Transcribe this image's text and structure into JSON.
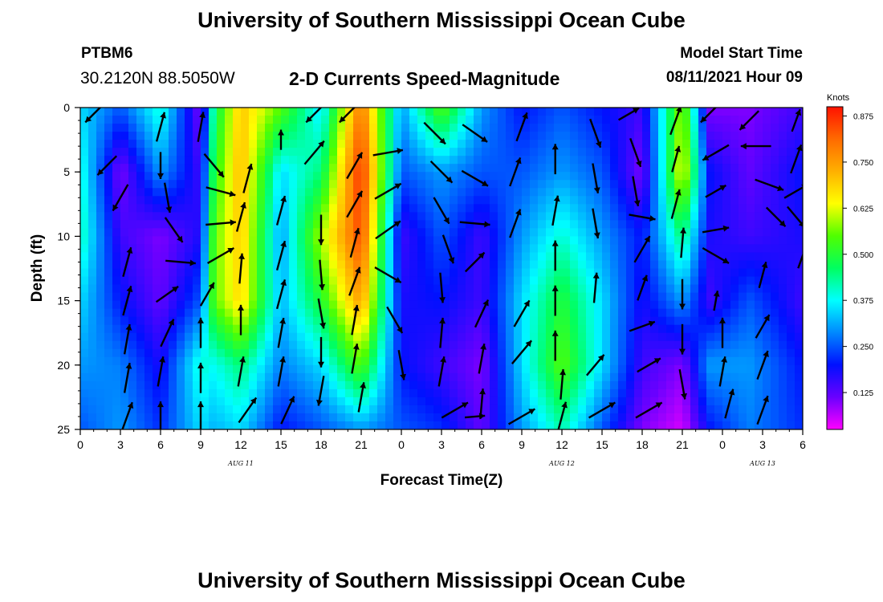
{
  "header": {
    "title": "University of Southern Mississippi Ocean Cube",
    "station_id": "PTBM6",
    "coordinates": "30.2120N  88.5050W",
    "chart_title": "2-D Currents Speed-Magnitude",
    "model_start_label": "Model Start Time",
    "model_start_value": "08/11/2021 Hour 09"
  },
  "footer": {
    "title": "University of Southern Mississippi Ocean Cube"
  },
  "chart_data": {
    "type": "heatmap",
    "title": "2-D Currents Speed-Magnitude",
    "xlabel": "Forecast Time(Z)",
    "ylabel": "Depth (ft)",
    "x_hours": [
      0,
      54
    ],
    "y_range": [
      0,
      25
    ],
    "y_inverted": true,
    "x_tick_labels": [
      "0",
      "3",
      "6",
      "9",
      "12",
      "15",
      "18",
      "21",
      "0",
      "3",
      "6",
      "9",
      "12",
      "15",
      "18",
      "21",
      "0",
      "3",
      "6"
    ],
    "y_tick_labels": [
      "0",
      "5",
      "10",
      "15",
      "20",
      "25"
    ],
    "day_labels": [
      {
        "text": "AUG  11",
        "hour": 12
      },
      {
        "text": "AUG  12",
        "hour": 36
      },
      {
        "text": "AUG  13",
        "hour": 51
      }
    ],
    "colorbar": {
      "unit": "Knots",
      "range": [
        0.025,
        0.9
      ],
      "tick_labels": [
        "0.875",
        "0.750",
        "0.625",
        "0.500",
        "0.375",
        "0.250",
        "0.125"
      ],
      "tick_values": [
        0.875,
        0.75,
        0.625,
        0.5,
        0.375,
        0.25,
        0.125
      ],
      "colors": [
        "#ff00ff",
        "#6a00ff",
        "#0010ff",
        "#0088ff",
        "#00ffff",
        "#00ff60",
        "#50ff00",
        "#ffff00",
        "#ffb000",
        "#ff6a00",
        "#ff1200"
      ]
    },
    "columns_hours": [
      0,
      3,
      6,
      9,
      10,
      12,
      15,
      18,
      21,
      24,
      27,
      30,
      33,
      36,
      39,
      42,
      45,
      47,
      50,
      54
    ],
    "depths_ft": [
      0,
      5,
      10,
      15,
      20,
      25
    ],
    "speed_knots": [
      [
        0.35,
        0.4,
        0.42,
        0.35,
        0.3,
        0.25
      ],
      [
        0.25,
        0.1,
        0.15,
        0.2,
        0.28,
        0.3
      ],
      [
        0.4,
        0.3,
        0.1,
        0.12,
        0.18,
        0.22
      ],
      [
        0.1,
        0.15,
        0.18,
        0.25,
        0.4,
        0.35
      ],
      [
        0.45,
        0.5,
        0.55,
        0.55,
        0.38,
        0.32
      ],
      [
        0.7,
        0.72,
        0.7,
        0.68,
        0.45,
        0.35
      ],
      [
        0.55,
        0.35,
        0.3,
        0.32,
        0.28,
        0.2
      ],
      [
        0.35,
        0.45,
        0.6,
        0.5,
        0.35,
        0.25
      ],
      [
        0.8,
        0.88,
        0.85,
        0.75,
        0.55,
        0.3
      ],
      [
        0.3,
        0.25,
        0.15,
        0.18,
        0.2,
        0.25
      ],
      [
        0.55,
        0.3,
        0.25,
        0.2,
        0.15,
        0.22
      ],
      [
        0.3,
        0.25,
        0.15,
        0.15,
        0.1,
        0.12
      ],
      [
        0.2,
        0.25,
        0.3,
        0.35,
        0.35,
        0.3
      ],
      [
        0.25,
        0.3,
        0.4,
        0.5,
        0.55,
        0.42
      ],
      [
        0.2,
        0.25,
        0.3,
        0.35,
        0.35,
        0.25
      ],
      [
        0.15,
        0.1,
        0.2,
        0.18,
        0.15,
        0.1
      ],
      [
        0.6,
        0.65,
        0.45,
        0.3,
        0.1,
        0.05
      ],
      [
        0.1,
        0.2,
        0.18,
        0.15,
        0.3,
        0.2
      ],
      [
        0.1,
        0.12,
        0.15,
        0.25,
        0.3,
        0.28
      ],
      [
        0.15,
        0.2,
        0.18,
        0.15,
        0.2,
        0.22
      ]
    ],
    "current_vectors": [
      {
        "hour": 1,
        "depth": 0.5,
        "angle": 225,
        "len": 0.7
      },
      {
        "hour": 2,
        "depth": 4.5,
        "angle": 225,
        "len": 0.8
      },
      {
        "hour": 3,
        "depth": 7,
        "angle": 210,
        "len": 0.9
      },
      {
        "hour": 3.5,
        "depth": 12,
        "angle": 15,
        "len": 0.9
      },
      {
        "hour": 3.5,
        "depth": 15,
        "angle": 15,
        "len": 0.9
      },
      {
        "hour": 3.5,
        "depth": 18,
        "angle": 10,
        "len": 0.9
      },
      {
        "hour": 3.5,
        "depth": 21,
        "angle": 10,
        "len": 0.9
      },
      {
        "hour": 3.5,
        "depth": 24,
        "angle": 20,
        "len": 0.9
      },
      {
        "hour": 6,
        "depth": 1.5,
        "angle": 15,
        "len": 0.9
      },
      {
        "hour": 6,
        "depth": 4.5,
        "angle": 180,
        "len": 0.8
      },
      {
        "hour": 6.5,
        "depth": 7,
        "angle": 170,
        "len": 0.9
      },
      {
        "hour": 7,
        "depth": 9.5,
        "angle": 145,
        "len": 0.9
      },
      {
        "hour": 7.5,
        "depth": 12,
        "angle": 95,
        "len": 0.9
      },
      {
        "hour": 6.5,
        "depth": 14.5,
        "angle": 55,
        "len": 0.8
      },
      {
        "hour": 6.5,
        "depth": 17.5,
        "angle": 25,
        "len": 0.9
      },
      {
        "hour": 6,
        "depth": 20.5,
        "angle": 10,
        "len": 0.9
      },
      {
        "hour": 6,
        "depth": 24,
        "angle": 0,
        "len": 0.9
      },
      {
        "hour": 9,
        "depth": 1.5,
        "angle": 10,
        "len": 0.9
      },
      {
        "hour": 10,
        "depth": 4.5,
        "angle": 140,
        "len": 0.9
      },
      {
        "hour": 10.5,
        "depth": 6.5,
        "angle": 105,
        "len": 0.9
      },
      {
        "hour": 10.5,
        "depth": 9,
        "angle": 85,
        "len": 0.9
      },
      {
        "hour": 10.5,
        "depth": 11.5,
        "angle": 60,
        "len": 0.9
      },
      {
        "hour": 9.5,
        "depth": 14.5,
        "angle": 30,
        "len": 0.8
      },
      {
        "hour": 9,
        "depth": 17.5,
        "angle": 0,
        "len": 0.9
      },
      {
        "hour": 9,
        "depth": 21,
        "angle": 0,
        "len": 0.9
      },
      {
        "hour": 9,
        "depth": 24,
        "angle": 0,
        "len": 0.9
      },
      {
        "hour": 12.5,
        "depth": 5.5,
        "angle": 15,
        "len": 0.9
      },
      {
        "hour": 12,
        "depth": 8.5,
        "angle": 15,
        "len": 0.9
      },
      {
        "hour": 12,
        "depth": 12.5,
        "angle": 5,
        "len": 0.9
      },
      {
        "hour": 12,
        "depth": 16.5,
        "angle": 0,
        "len": 0.9
      },
      {
        "hour": 12,
        "depth": 20.5,
        "angle": 10,
        "len": 0.9
      },
      {
        "hour": 12.5,
        "depth": 23.5,
        "angle": 35,
        "len": 0.9
      },
      {
        "hour": 15,
        "depth": 2.5,
        "angle": 0,
        "len": 0.6
      },
      {
        "hour": 15,
        "depth": 8,
        "angle": 15,
        "len": 0.9
      },
      {
        "hour": 15,
        "depth": 11.5,
        "angle": 15,
        "len": 0.9
      },
      {
        "hour": 15,
        "depth": 14.5,
        "angle": 15,
        "len": 0.9
      },
      {
        "hour": 15,
        "depth": 17.5,
        "angle": 10,
        "len": 0.9
      },
      {
        "hour": 15,
        "depth": 20.5,
        "angle": 10,
        "len": 0.9
      },
      {
        "hour": 15.5,
        "depth": 23.5,
        "angle": 25,
        "len": 0.9
      },
      {
        "hour": 17.5,
        "depth": 0.5,
        "angle": 225,
        "len": 0.7
      },
      {
        "hour": 17.5,
        "depth": 3.5,
        "angle": 40,
        "len": 0.9
      },
      {
        "hour": 18,
        "depth": 9.5,
        "angle": 180,
        "len": 0.9
      },
      {
        "hour": 18,
        "depth": 13,
        "angle": 175,
        "len": 0.9
      },
      {
        "hour": 18,
        "depth": 16,
        "angle": 170,
        "len": 0.9
      },
      {
        "hour": 18,
        "depth": 19,
        "angle": 180,
        "len": 0.9
      },
      {
        "hour": 18,
        "depth": 22,
        "angle": 190,
        "len": 0.9
      },
      {
        "hour": 20,
        "depth": 0.5,
        "angle": 225,
        "len": 0.7
      },
      {
        "hour": 20.5,
        "depth": 4.5,
        "angle": 30,
        "len": 0.9
      },
      {
        "hour": 20.5,
        "depth": 7.5,
        "angle": 30,
        "len": 0.9
      },
      {
        "hour": 20.5,
        "depth": 10.5,
        "angle": 15,
        "len": 0.9
      },
      {
        "hour": 20.5,
        "depth": 13.5,
        "angle": 20,
        "len": 0.9
      },
      {
        "hour": 20.5,
        "depth": 16.5,
        "angle": 10,
        "len": 0.9
      },
      {
        "hour": 20.5,
        "depth": 19.5,
        "angle": 10,
        "len": 0.9
      },
      {
        "hour": 21,
        "depth": 22.5,
        "angle": 10,
        "len": 0.9
      },
      {
        "hour": 23,
        "depth": 3.5,
        "angle": 80,
        "len": 0.9
      },
      {
        "hour": 23,
        "depth": 6.5,
        "angle": 60,
        "len": 0.9
      },
      {
        "hour": 23,
        "depth": 9.5,
        "angle": 55,
        "len": 0.9
      },
      {
        "hour": 23,
        "depth": 13,
        "angle": 120,
        "len": 0.9
      },
      {
        "hour": 23.5,
        "depth": 16.5,
        "angle": 150,
        "len": 0.9
      },
      {
        "hour": 24,
        "depth": 20,
        "angle": 170,
        "len": 0.9
      },
      {
        "hour": 26.5,
        "depth": 2,
        "angle": 135,
        "len": 0.9
      },
      {
        "hour": 27,
        "depth": 5,
        "angle": 135,
        "len": 0.9
      },
      {
        "hour": 27,
        "depth": 8,
        "angle": 150,
        "len": 0.9
      },
      {
        "hour": 27.5,
        "depth": 11,
        "angle": 160,
        "len": 0.9
      },
      {
        "hour": 27,
        "depth": 14,
        "angle": 175,
        "len": 0.9
      },
      {
        "hour": 27,
        "depth": 17.5,
        "angle": 5,
        "len": 0.9
      },
      {
        "hour": 27,
        "depth": 20.5,
        "angle": 10,
        "len": 0.9
      },
      {
        "hour": 28,
        "depth": 23.5,
        "angle": 60,
        "len": 0.9
      },
      {
        "hour": 29.5,
        "depth": 2,
        "angle": 125,
        "len": 0.9
      },
      {
        "hour": 29.5,
        "depth": 5.5,
        "angle": 120,
        "len": 0.9
      },
      {
        "hour": 29.5,
        "depth": 9,
        "angle": 95,
        "len": 0.9
      },
      {
        "hour": 29.5,
        "depth": 12,
        "angle": 45,
        "len": 0.8
      },
      {
        "hour": 30,
        "depth": 16,
        "angle": 25,
        "len": 0.9
      },
      {
        "hour": 30,
        "depth": 19.5,
        "angle": 10,
        "len": 0.9
      },
      {
        "hour": 30,
        "depth": 23,
        "angle": 5,
        "len": 0.9
      },
      {
        "hour": 29.5,
        "depth": 24,
        "angle": 85,
        "len": 0.6
      },
      {
        "hour": 33,
        "depth": 1.5,
        "angle": 20,
        "len": 0.9
      },
      {
        "hour": 32.5,
        "depth": 5,
        "angle": 20,
        "len": 0.9
      },
      {
        "hour": 32.5,
        "depth": 9,
        "angle": 20,
        "len": 0.9
      },
      {
        "hour": 33,
        "depth": 16,
        "angle": 30,
        "len": 0.9
      },
      {
        "hour": 33,
        "depth": 19,
        "angle": 40,
        "len": 0.9
      },
      {
        "hour": 33,
        "depth": 24,
        "angle": 60,
        "len": 0.9
      },
      {
        "hour": 35.5,
        "depth": 4,
        "angle": 0,
        "len": 0.9
      },
      {
        "hour": 35.5,
        "depth": 8,
        "angle": 10,
        "len": 0.9
      },
      {
        "hour": 35.5,
        "depth": 11.5,
        "angle": 0,
        "len": 0.9
      },
      {
        "hour": 35.5,
        "depth": 15,
        "angle": 0,
        "len": 0.9
      },
      {
        "hour": 35.5,
        "depth": 18.5,
        "angle": 0,
        "len": 0.9
      },
      {
        "hour": 36,
        "depth": 21.5,
        "angle": 5,
        "len": 0.9
      },
      {
        "hour": 36,
        "depth": 24,
        "angle": 15,
        "len": 0.9
      },
      {
        "hour": 38.5,
        "depth": 2,
        "angle": 160,
        "len": 0.9
      },
      {
        "hour": 38.5,
        "depth": 5.5,
        "angle": 170,
        "len": 0.9
      },
      {
        "hour": 38.5,
        "depth": 9,
        "angle": 170,
        "len": 0.9
      },
      {
        "hour": 38.5,
        "depth": 14,
        "angle": 5,
        "len": 0.9
      },
      {
        "hour": 38.5,
        "depth": 20,
        "angle": 40,
        "len": 0.8
      },
      {
        "hour": 39,
        "depth": 23.5,
        "angle": 60,
        "len": 0.9
      },
      {
        "hour": 41,
        "depth": 0.5,
        "angle": 60,
        "len": 0.7
      },
      {
        "hour": 41.5,
        "depth": 3.5,
        "angle": 160,
        "len": 0.9
      },
      {
        "hour": 41.5,
        "depth": 6.5,
        "angle": 170,
        "len": 0.9
      },
      {
        "hour": 42,
        "depth": 8.5,
        "angle": 100,
        "len": 0.8
      },
      {
        "hour": 42,
        "depth": 11,
        "angle": 30,
        "len": 0.9
      },
      {
        "hour": 42,
        "depth": 14,
        "angle": 20,
        "len": 0.8
      },
      {
        "hour": 42,
        "depth": 17,
        "angle": 70,
        "len": 0.8
      },
      {
        "hour": 42.5,
        "depth": 20,
        "angle": 60,
        "len": 0.8
      },
      {
        "hour": 42.5,
        "depth": 23.5,
        "angle": 60,
        "len": 0.9
      },
      {
        "hour": 44.5,
        "depth": 1,
        "angle": 20,
        "len": 0.9
      },
      {
        "hour": 44.5,
        "depth": 4,
        "angle": 15,
        "len": 0.8
      },
      {
        "hour": 44.5,
        "depth": 7.5,
        "angle": 15,
        "len": 0.9
      },
      {
        "hour": 45,
        "depth": 10.5,
        "angle": 5,
        "len": 0.9
      },
      {
        "hour": 45,
        "depth": 14.5,
        "angle": 180,
        "len": 0.9
      },
      {
        "hour": 45,
        "depth": 18,
        "angle": 180,
        "len": 0.9
      },
      {
        "hour": 45,
        "depth": 21.5,
        "angle": 170,
        "len": 0.9
      },
      {
        "hour": 47,
        "depth": 0.5,
        "angle": 225,
        "len": 0.7
      },
      {
        "hour": 47.5,
        "depth": 3.5,
        "angle": 240,
        "len": 0.9
      },
      {
        "hour": 47.5,
        "depth": 6.5,
        "angle": 60,
        "len": 0.7
      },
      {
        "hour": 47.5,
        "depth": 9.5,
        "angle": 80,
        "len": 0.8
      },
      {
        "hour": 47.5,
        "depth": 11.5,
        "angle": 120,
        "len": 0.9
      },
      {
        "hour": 47.5,
        "depth": 15,
        "angle": 10,
        "len": 0.6
      },
      {
        "hour": 48,
        "depth": 17.5,
        "angle": 0,
        "len": 0.9
      },
      {
        "hour": 48,
        "depth": 20.5,
        "angle": 10,
        "len": 0.9
      },
      {
        "hour": 48.5,
        "depth": 23,
        "angle": 15,
        "len": 0.9
      },
      {
        "hour": 50,
        "depth": 1,
        "angle": 225,
        "len": 0.8
      },
      {
        "hour": 50.5,
        "depth": 3,
        "angle": 270,
        "len": 0.9
      },
      {
        "hour": 51.5,
        "depth": 6,
        "angle": 110,
        "len": 0.9
      },
      {
        "hour": 52,
        "depth": 8.5,
        "angle": 135,
        "len": 0.8
      },
      {
        "hour": 51,
        "depth": 13,
        "angle": 15,
        "len": 0.8
      },
      {
        "hour": 51,
        "depth": 17,
        "angle": 30,
        "len": 0.8
      },
      {
        "hour": 51,
        "depth": 20,
        "angle": 20,
        "len": 0.9
      },
      {
        "hour": 51,
        "depth": 23.5,
        "angle": 20,
        "len": 0.9
      },
      {
        "hour": 53.5,
        "depth": 1,
        "angle": 20,
        "len": 0.7
      },
      {
        "hour": 53.5,
        "depth": 4,
        "angle": 20,
        "len": 0.9
      },
      {
        "hour": 53.5,
        "depth": 6.5,
        "angle": 60,
        "len": 0.8
      },
      {
        "hour": 53.5,
        "depth": 8.5,
        "angle": 140,
        "len": 0.8
      },
      {
        "hour": 54,
        "depth": 11.5,
        "angle": 20,
        "len": 0.8
      }
    ]
  }
}
